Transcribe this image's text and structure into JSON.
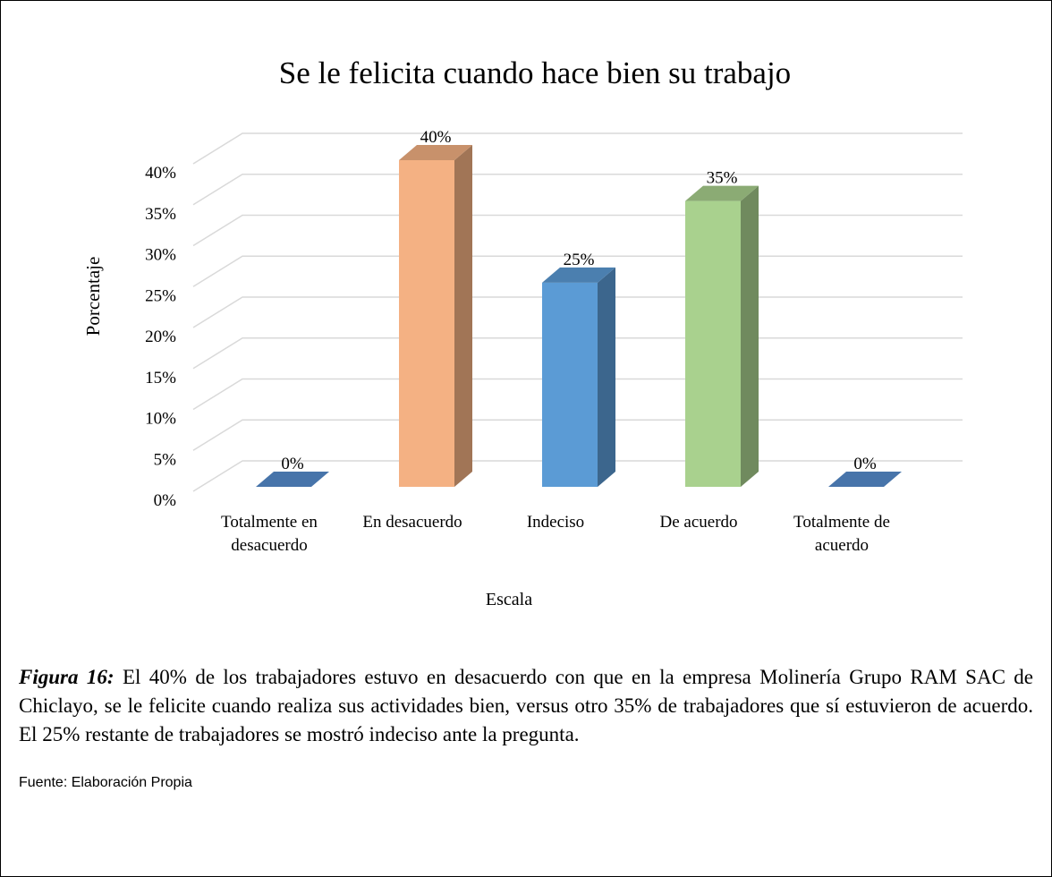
{
  "chart_data": {
    "type": "bar3d",
    "title": "Se le felicita cuando hace bien su trabajo",
    "categories": [
      "Totalmente en desacuerdo",
      "En desacuerdo",
      "Indeciso",
      "De acuerdo",
      "Totalmente de acuerdo"
    ],
    "values": [
      0,
      40,
      25,
      35,
      0
    ],
    "value_labels": [
      "0%",
      "40%",
      "25%",
      "35%",
      "0%"
    ],
    "colors": [
      "#4f81bd",
      "#f4b183",
      "#5b9bd5",
      "#a9d18e",
      "#4f81bd"
    ],
    "ylim": [
      0,
      40
    ],
    "yticks": [
      {
        "value": 0,
        "label": "0%"
      },
      {
        "value": 5,
        "label": "5%"
      },
      {
        "value": 10,
        "label": "10%"
      },
      {
        "value": 15,
        "label": "15%"
      },
      {
        "value": 20,
        "label": "20%"
      },
      {
        "value": 25,
        "label": "25%"
      },
      {
        "value": 30,
        "label": "30%"
      },
      {
        "value": 35,
        "label": "35%"
      },
      {
        "value": 40,
        "label": "40%"
      }
    ],
    "ylabel": "Porcentaje",
    "xlabel": "Escala",
    "grid": true
  },
  "caption": {
    "label": "Figura 16:",
    "text": "El 40% de los trabajadores estuvo en desacuerdo con que en la empresa Molinería Grupo RAM SAC de Chiclayo, se le felicite cuando realiza sus actividades bien, versus otro 35% de trabajadores que sí estuvieron de acuerdo. El 25% restante de trabajadores se mostró indeciso ante la pregunta."
  },
  "source": "Fuente: Elaboración Propia"
}
